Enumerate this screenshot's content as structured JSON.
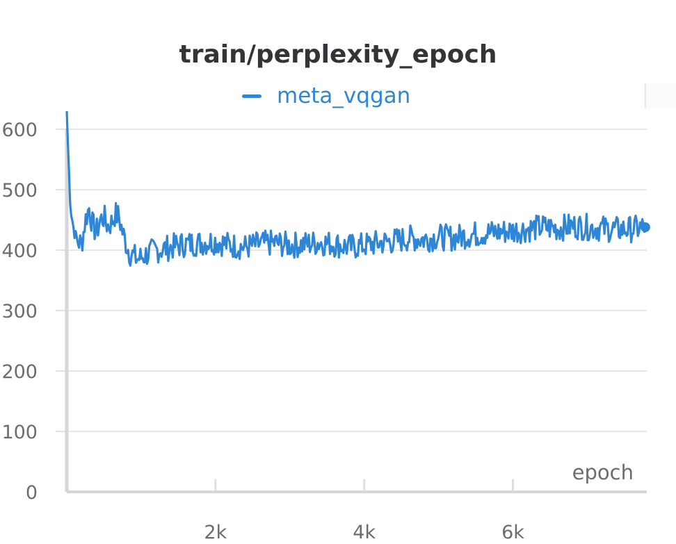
{
  "chart_data": {
    "type": "line",
    "title": "train/perplexity_epoch",
    "xlabel": "epoch",
    "ylabel": "",
    "xlim": [
      0,
      7800
    ],
    "ylim": [
      0,
      630
    ],
    "x_ticks": [
      {
        "value": 2000,
        "label": "2k"
      },
      {
        "value": 4000,
        "label": "4k"
      },
      {
        "value": 6000,
        "label": "6k"
      }
    ],
    "y_ticks": [
      {
        "value": 0,
        "label": "0"
      },
      {
        "value": 100,
        "label": "100"
      },
      {
        "value": 200,
        "label": "200"
      },
      {
        "value": 300,
        "label": "300"
      },
      {
        "value": 400,
        "label": "400"
      },
      {
        "value": 500,
        "label": "500"
      },
      {
        "value": 600,
        "label": "600"
      }
    ],
    "grid": true,
    "legend_position": "top-center",
    "series": [
      {
        "name": "meta_vqgan",
        "color": "#2f86d6",
        "x": [
          0,
          20,
          50,
          100,
          150,
          200,
          250,
          300,
          350,
          400,
          450,
          500,
          550,
          600,
          650,
          700,
          750,
          800,
          850,
          900,
          950,
          1000,
          1100,
          1200,
          1300,
          1400,
          1500,
          1600,
          1800,
          2000,
          2200,
          2400,
          2600,
          2800,
          3000,
          3200,
          3400,
          3600,
          3800,
          4000,
          4200,
          4400,
          4600,
          4800,
          5000,
          5200,
          5400,
          5600,
          5800,
          6000,
          6200,
          6400,
          6600,
          6800,
          7000,
          7200,
          7400,
          7600,
          7780
        ],
        "values": [
          630,
          560,
          470,
          430,
          415,
          410,
          450,
          470,
          440,
          430,
          450,
          455,
          440,
          445,
          460,
          455,
          430,
          410,
          395,
          390,
          385,
          388,
          395,
          400,
          402,
          405,
          408,
          410,
          412,
          415,
          408,
          405,
          410,
          412,
          408,
          410,
          413,
          410,
          405,
          408,
          412,
          415,
          420,
          418,
          422,
          420,
          425,
          428,
          430,
          432,
          435,
          438,
          436,
          440,
          438,
          436,
          434,
          435,
          438
        ]
      }
    ]
  }
}
